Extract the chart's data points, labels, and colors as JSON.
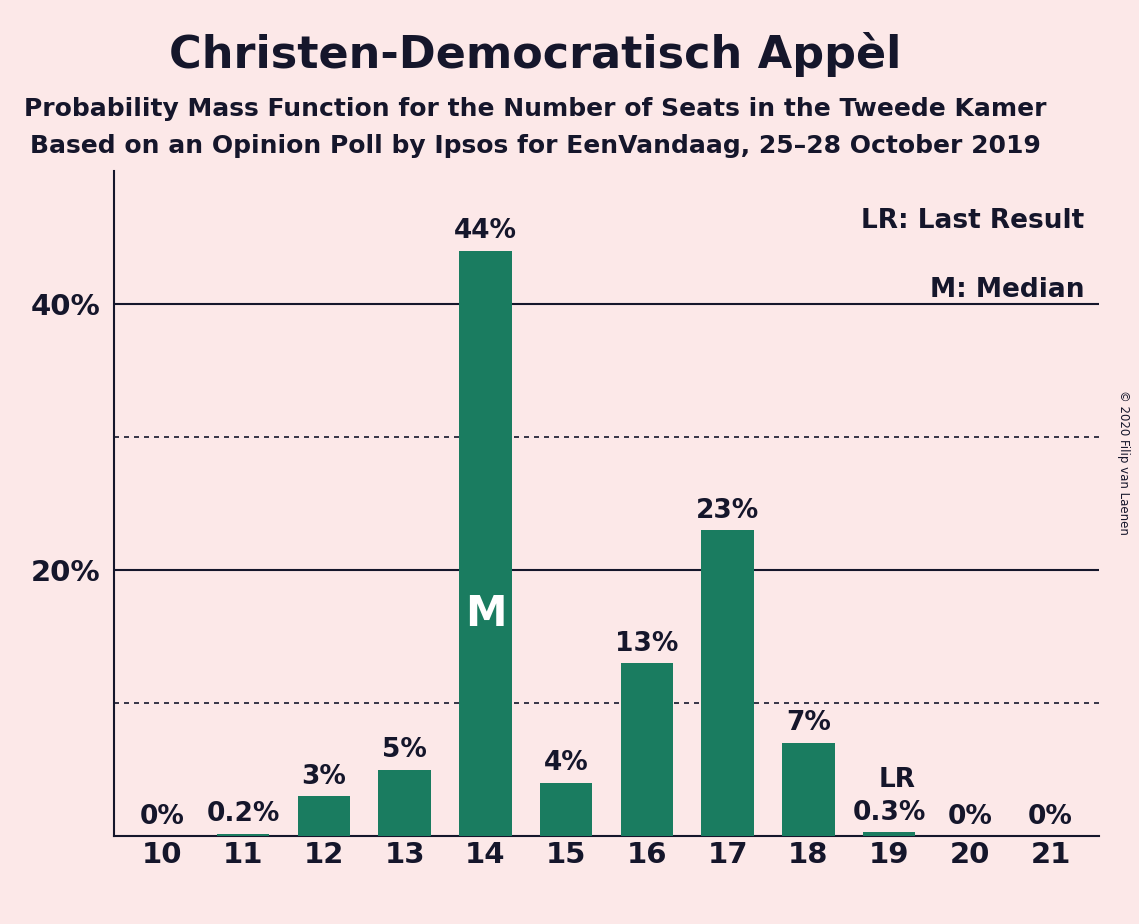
{
  "title": "Christen-Democratisch Appèl",
  "subtitle1": "Probability Mass Function for the Number of Seats in the Tweede Kamer",
  "subtitle2": "Based on an Opinion Poll by Ipsos for EenVandaag, 25–28 October 2019",
  "copyright": "© 2020 Filip van Laenen",
  "categories": [
    10,
    11,
    12,
    13,
    14,
    15,
    16,
    17,
    18,
    19,
    20,
    21
  ],
  "values": [
    0.0,
    0.2,
    3.0,
    5.0,
    44.0,
    4.0,
    13.0,
    23.0,
    7.0,
    0.3,
    0.0,
    0.0
  ],
  "bar_color": "#1a7c60",
  "background_color": "#fce8e8",
  "text_color": "#15162b",
  "bar_labels": [
    "0%",
    "0.2%",
    "3%",
    "5%",
    "44%",
    "4%",
    "13%",
    "23%",
    "7%",
    "0.3%",
    "0%",
    "0%"
  ],
  "median_bar_index": 4,
  "lr_label": "LR",
  "median_label": "M",
  "legend_lr": "LR: Last Result",
  "legend_m": "M: Median",
  "yticks": [
    20,
    40
  ],
  "ytick_labels": [
    "20%",
    "40%"
  ],
  "dotted_lines": [
    10,
    30
  ],
  "solid_lines": [
    20,
    40
  ],
  "ylim": [
    0,
    50
  ],
  "title_fontsize": 32,
  "subtitle_fontsize": 18,
  "bar_label_fontsize": 19,
  "axis_label_fontsize": 21,
  "legend_fontsize": 19,
  "median_fontsize": 30
}
